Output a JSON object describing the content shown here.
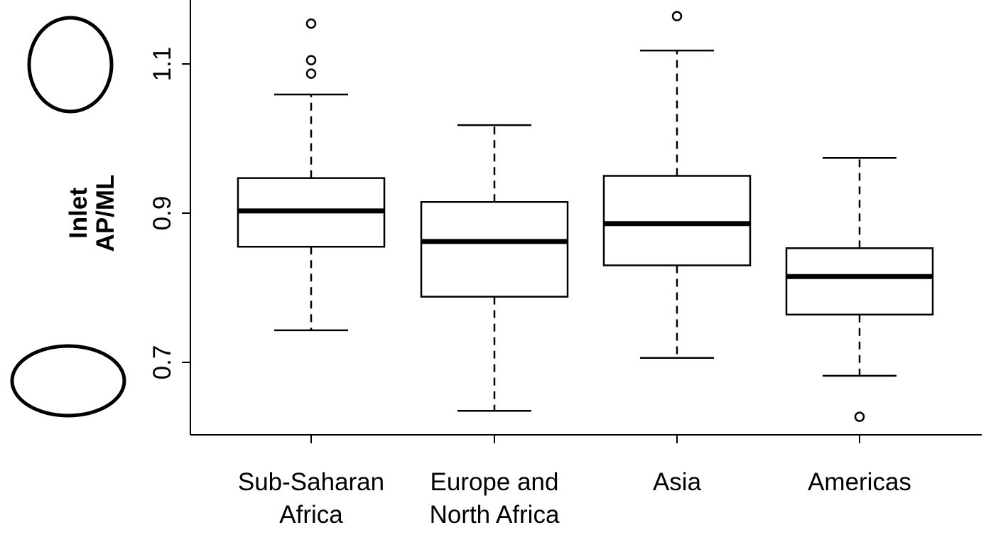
{
  "chart_data": {
    "type": "boxplot",
    "title": "",
    "ylabel_lines": [
      "Inlet",
      "AP/ML"
    ],
    "xlabel": "",
    "ylim": [
      0.605,
      1.2
    ],
    "yticks": [
      0.7,
      0.9,
      1.1
    ],
    "ytick_labels": [
      "0.7",
      "0.9",
      "1.1"
    ],
    "grid": false,
    "categories": [
      {
        "label_lines": [
          "Sub-Saharan",
          "Africa"
        ],
        "whisker_low": 0.743,
        "q1": 0.855,
        "median": 0.903,
        "q3": 0.947,
        "whisker_high": 1.059,
        "outliers": [
          1.154,
          1.105,
          1.087
        ]
      },
      {
        "label_lines": [
          "Europe and",
          "North Africa"
        ],
        "whisker_low": 0.635,
        "q1": 0.788,
        "median": 0.862,
        "q3": 0.915,
        "whisker_high": 1.018,
        "outliers": []
      },
      {
        "label_lines": [
          "Asia"
        ],
        "whisker_low": 0.706,
        "q1": 0.83,
        "median": 0.886,
        "q3": 0.95,
        "whisker_high": 1.118,
        "outliers": [
          1.164
        ]
      },
      {
        "label_lines": [
          "Americas"
        ],
        "whisker_low": 0.682,
        "q1": 0.764,
        "median": 0.815,
        "q3": 0.853,
        "whisker_high": 0.974,
        "outliers": [
          0.627
        ]
      }
    ],
    "shape_icons": [
      "tall-ellipse-icon",
      "wide-ellipse-icon"
    ]
  }
}
